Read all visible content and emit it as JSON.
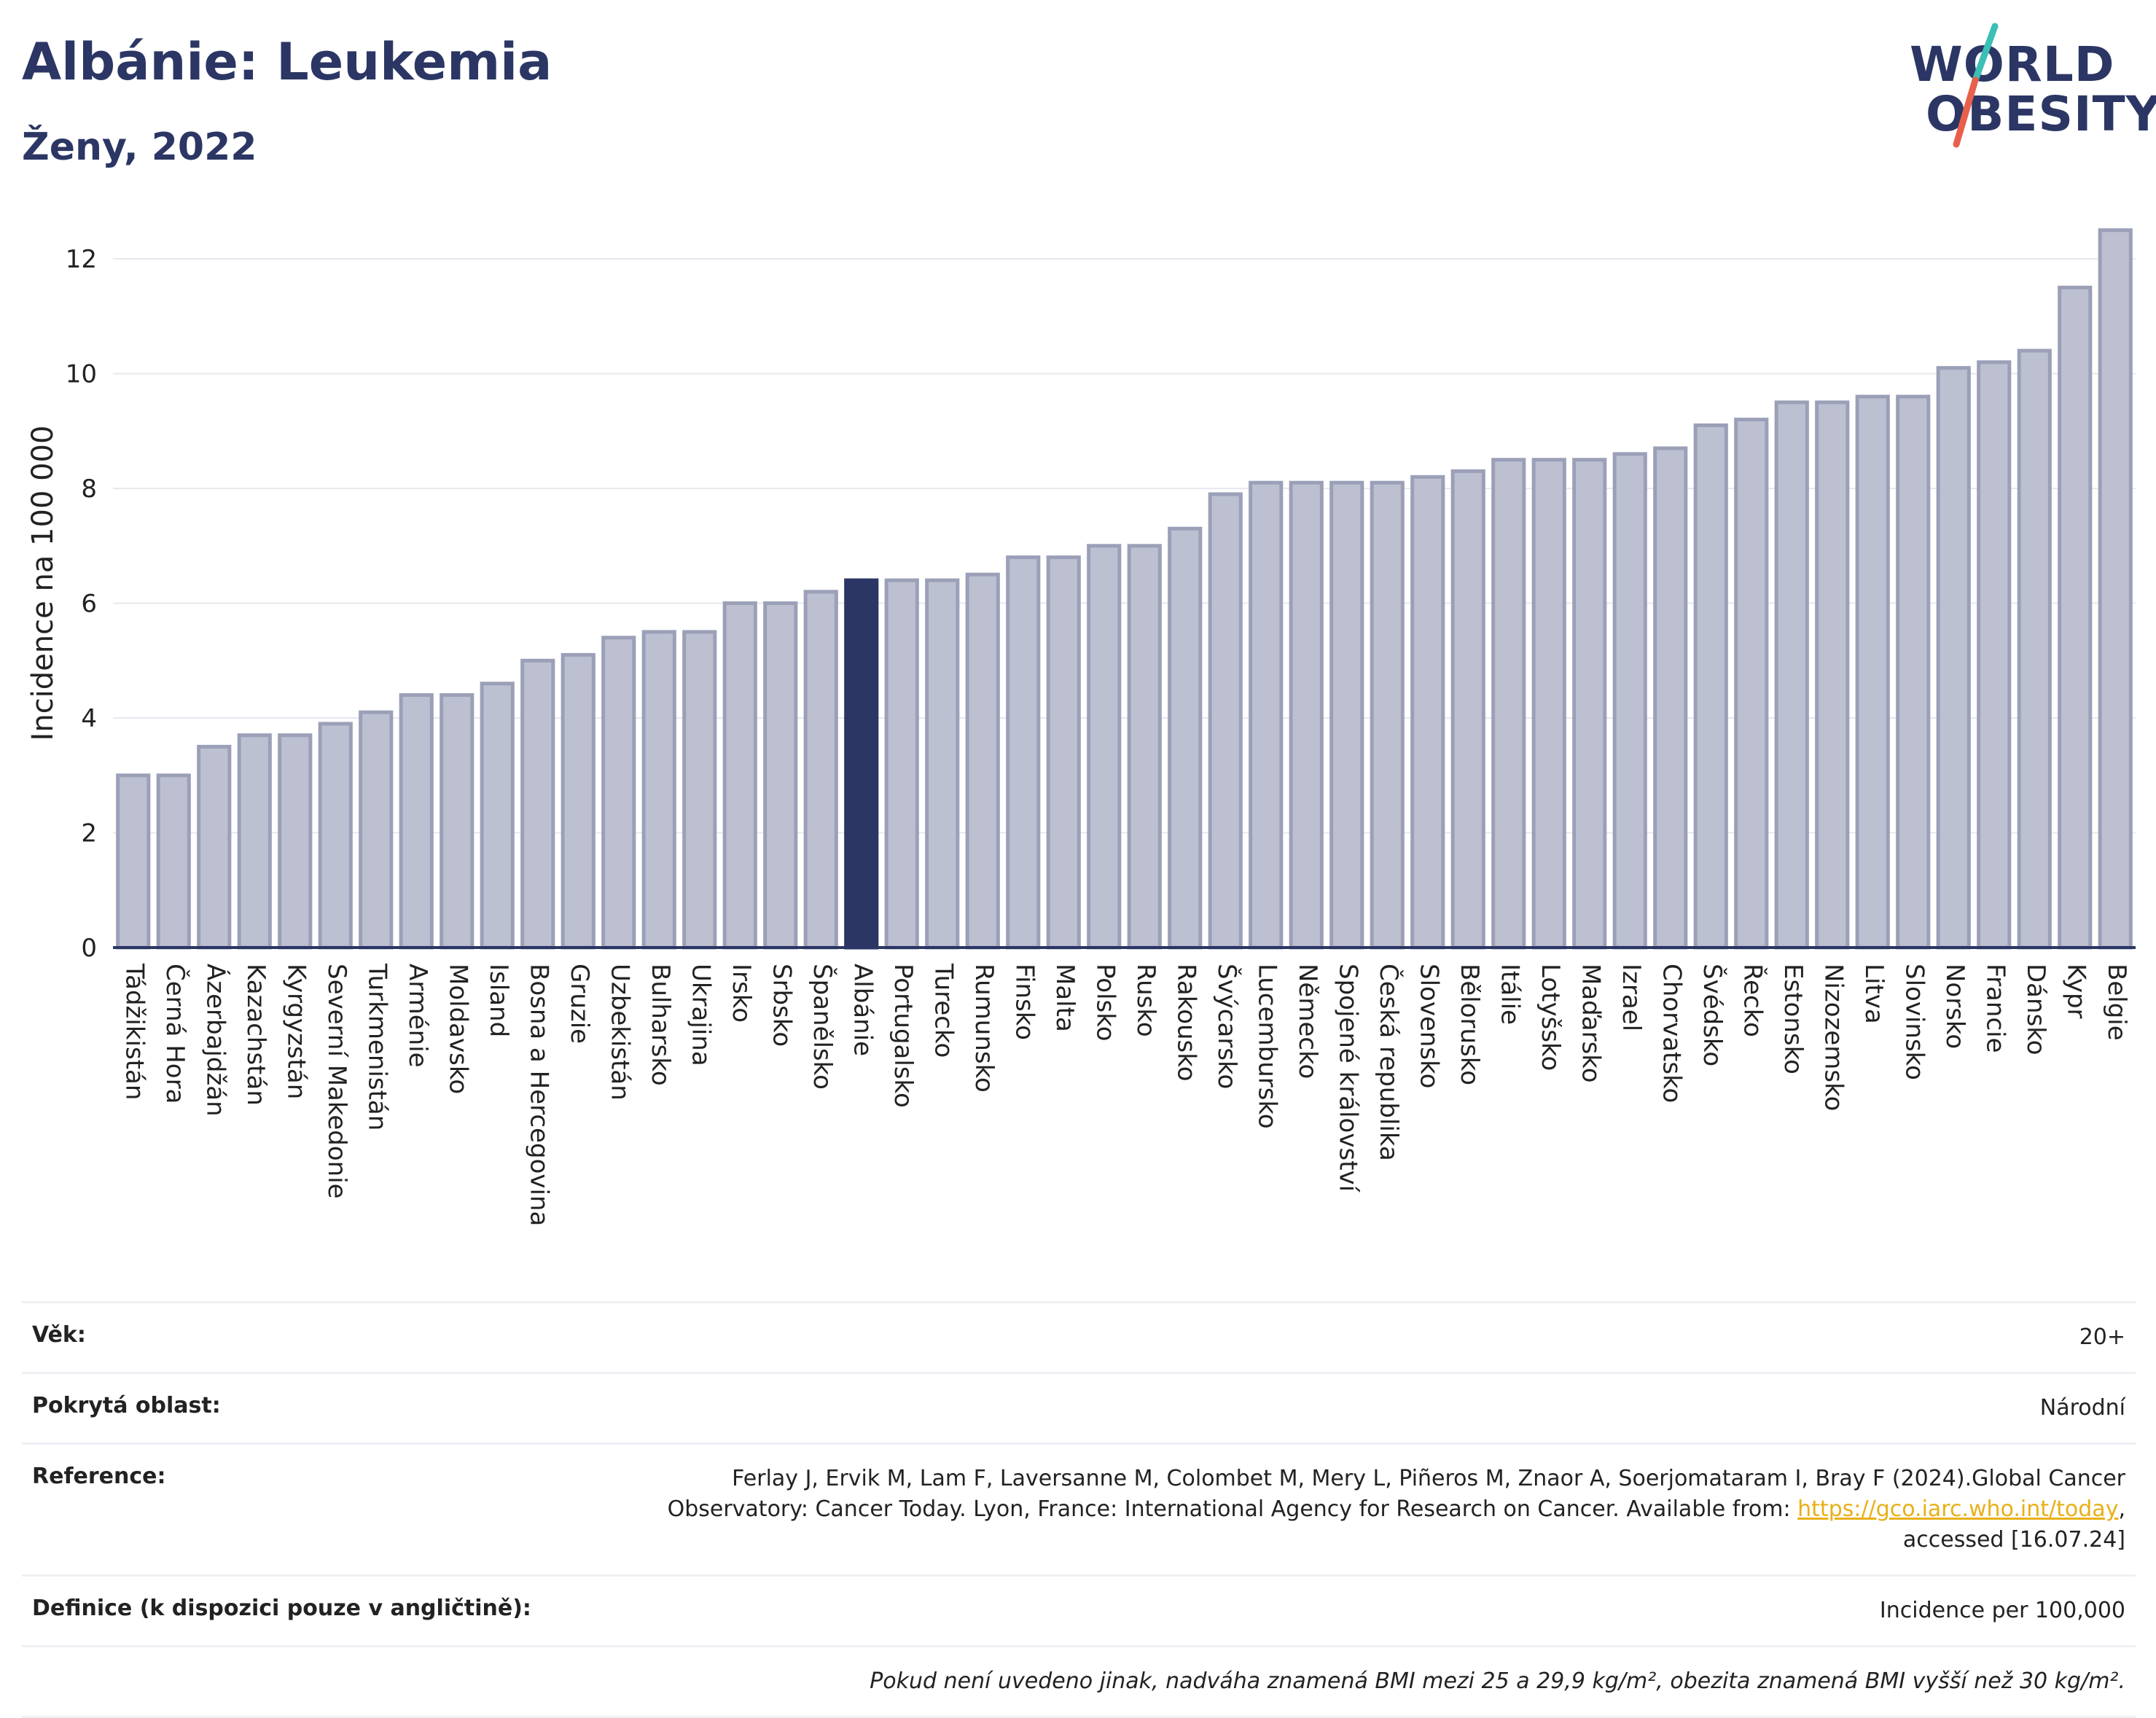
{
  "header": {
    "title": "Albánie: Leukemia",
    "subtitle": "Ženy, 2022"
  },
  "logo": {
    "line1": "WORLD",
    "line2": "OBESITY",
    "colors": {
      "text": "#2b3664",
      "slash_top": "#3cbfb4",
      "slash_bottom": "#e8604c"
    }
  },
  "colors": {
    "bar": "#bcc0d0",
    "bar_border": "#9ba0b8",
    "highlight": "#2b3664",
    "grid": "#e6e8ee",
    "axis": "#2b3664"
  },
  "chart_data": {
    "type": "bar",
    "ylabel": "Incidence na 100 000",
    "xlabel": "",
    "ylim": [
      0,
      12.7
    ],
    "yticks": [
      0,
      2,
      4,
      6,
      8,
      10,
      12
    ],
    "grid": true,
    "highlight": "Albánie",
    "categories": [
      "Tádžikistán",
      "Černá Hora",
      "Ázerbajdžán",
      "Kazachstán",
      "Kyrgyzstán",
      "Severní Makedonie",
      "Turkmenistán",
      "Arménie",
      "Moldavsko",
      "Island",
      "Bosna a Hercegovina",
      "Gruzie",
      "Uzbekistán",
      "Bulharsko",
      "Ukrajina",
      "Irsko",
      "Srbsko",
      "Španělsko",
      "Albánie",
      "Portugalsko",
      "Turecko",
      "Rumunsko",
      "Finsko",
      "Malta",
      "Polsko",
      "Rusko",
      "Rakousko",
      "Švýcarsko",
      "Lucembursko",
      "Německo",
      "Spojené království",
      "Česká republika",
      "Slovensko",
      "Bělorusko",
      "Itálie",
      "Lotyšsko",
      "Maďarsko",
      "Izrael",
      "Chorvatsko",
      "Švédsko",
      "Řecko",
      "Estonsko",
      "Nizozemsko",
      "Litva",
      "Slovinsko",
      "Norsko",
      "Francie",
      "Dánsko",
      "Kypr",
      "Belgie"
    ],
    "values": [
      3.0,
      3.0,
      3.5,
      3.7,
      3.7,
      3.9,
      4.1,
      4.4,
      4.4,
      4.6,
      5.0,
      5.1,
      5.4,
      5.5,
      5.5,
      6.0,
      6.0,
      6.2,
      6.4,
      6.4,
      6.4,
      6.5,
      6.8,
      6.8,
      7.0,
      7.0,
      7.3,
      7.9,
      8.1,
      8.1,
      8.1,
      8.1,
      8.2,
      8.3,
      8.5,
      8.5,
      8.5,
      8.6,
      8.7,
      9.1,
      9.2,
      9.5,
      9.5,
      9.6,
      9.6,
      10.1,
      10.2,
      10.4,
      11.5,
      12.5
    ]
  },
  "meta": {
    "age_label": "Věk:",
    "age_value": "20+",
    "area_label": "Pokrytá oblast:",
    "area_value": "Národní",
    "ref_label": "Reference:",
    "ref_line1": "Ferlay J, Ervik M, Lam F, Laversanne M, Colombet M, Mery L, Piñeros M, Znaor A, Soerjomataram I, Bray F (2024).Global Cancer",
    "ref_line2": "Observatory: Cancer Today. Lyon, France: International Agency for Research on Cancer. Available from: ",
    "ref_link": "https://gco.iarc.who.int/today",
    "ref_line3a": ",",
    "ref_line3": "accessed [16.07.24]",
    "def_label": "Definice (k dispozici pouze v angličtině):",
    "def_value": "Incidence per 100,000",
    "note": "Pokud není uvedeno jinak, nadváha znamená BMI mezi 25 a 29,9 kg/m², obezita znamená BMI vyšší než 30 kg/m²."
  }
}
